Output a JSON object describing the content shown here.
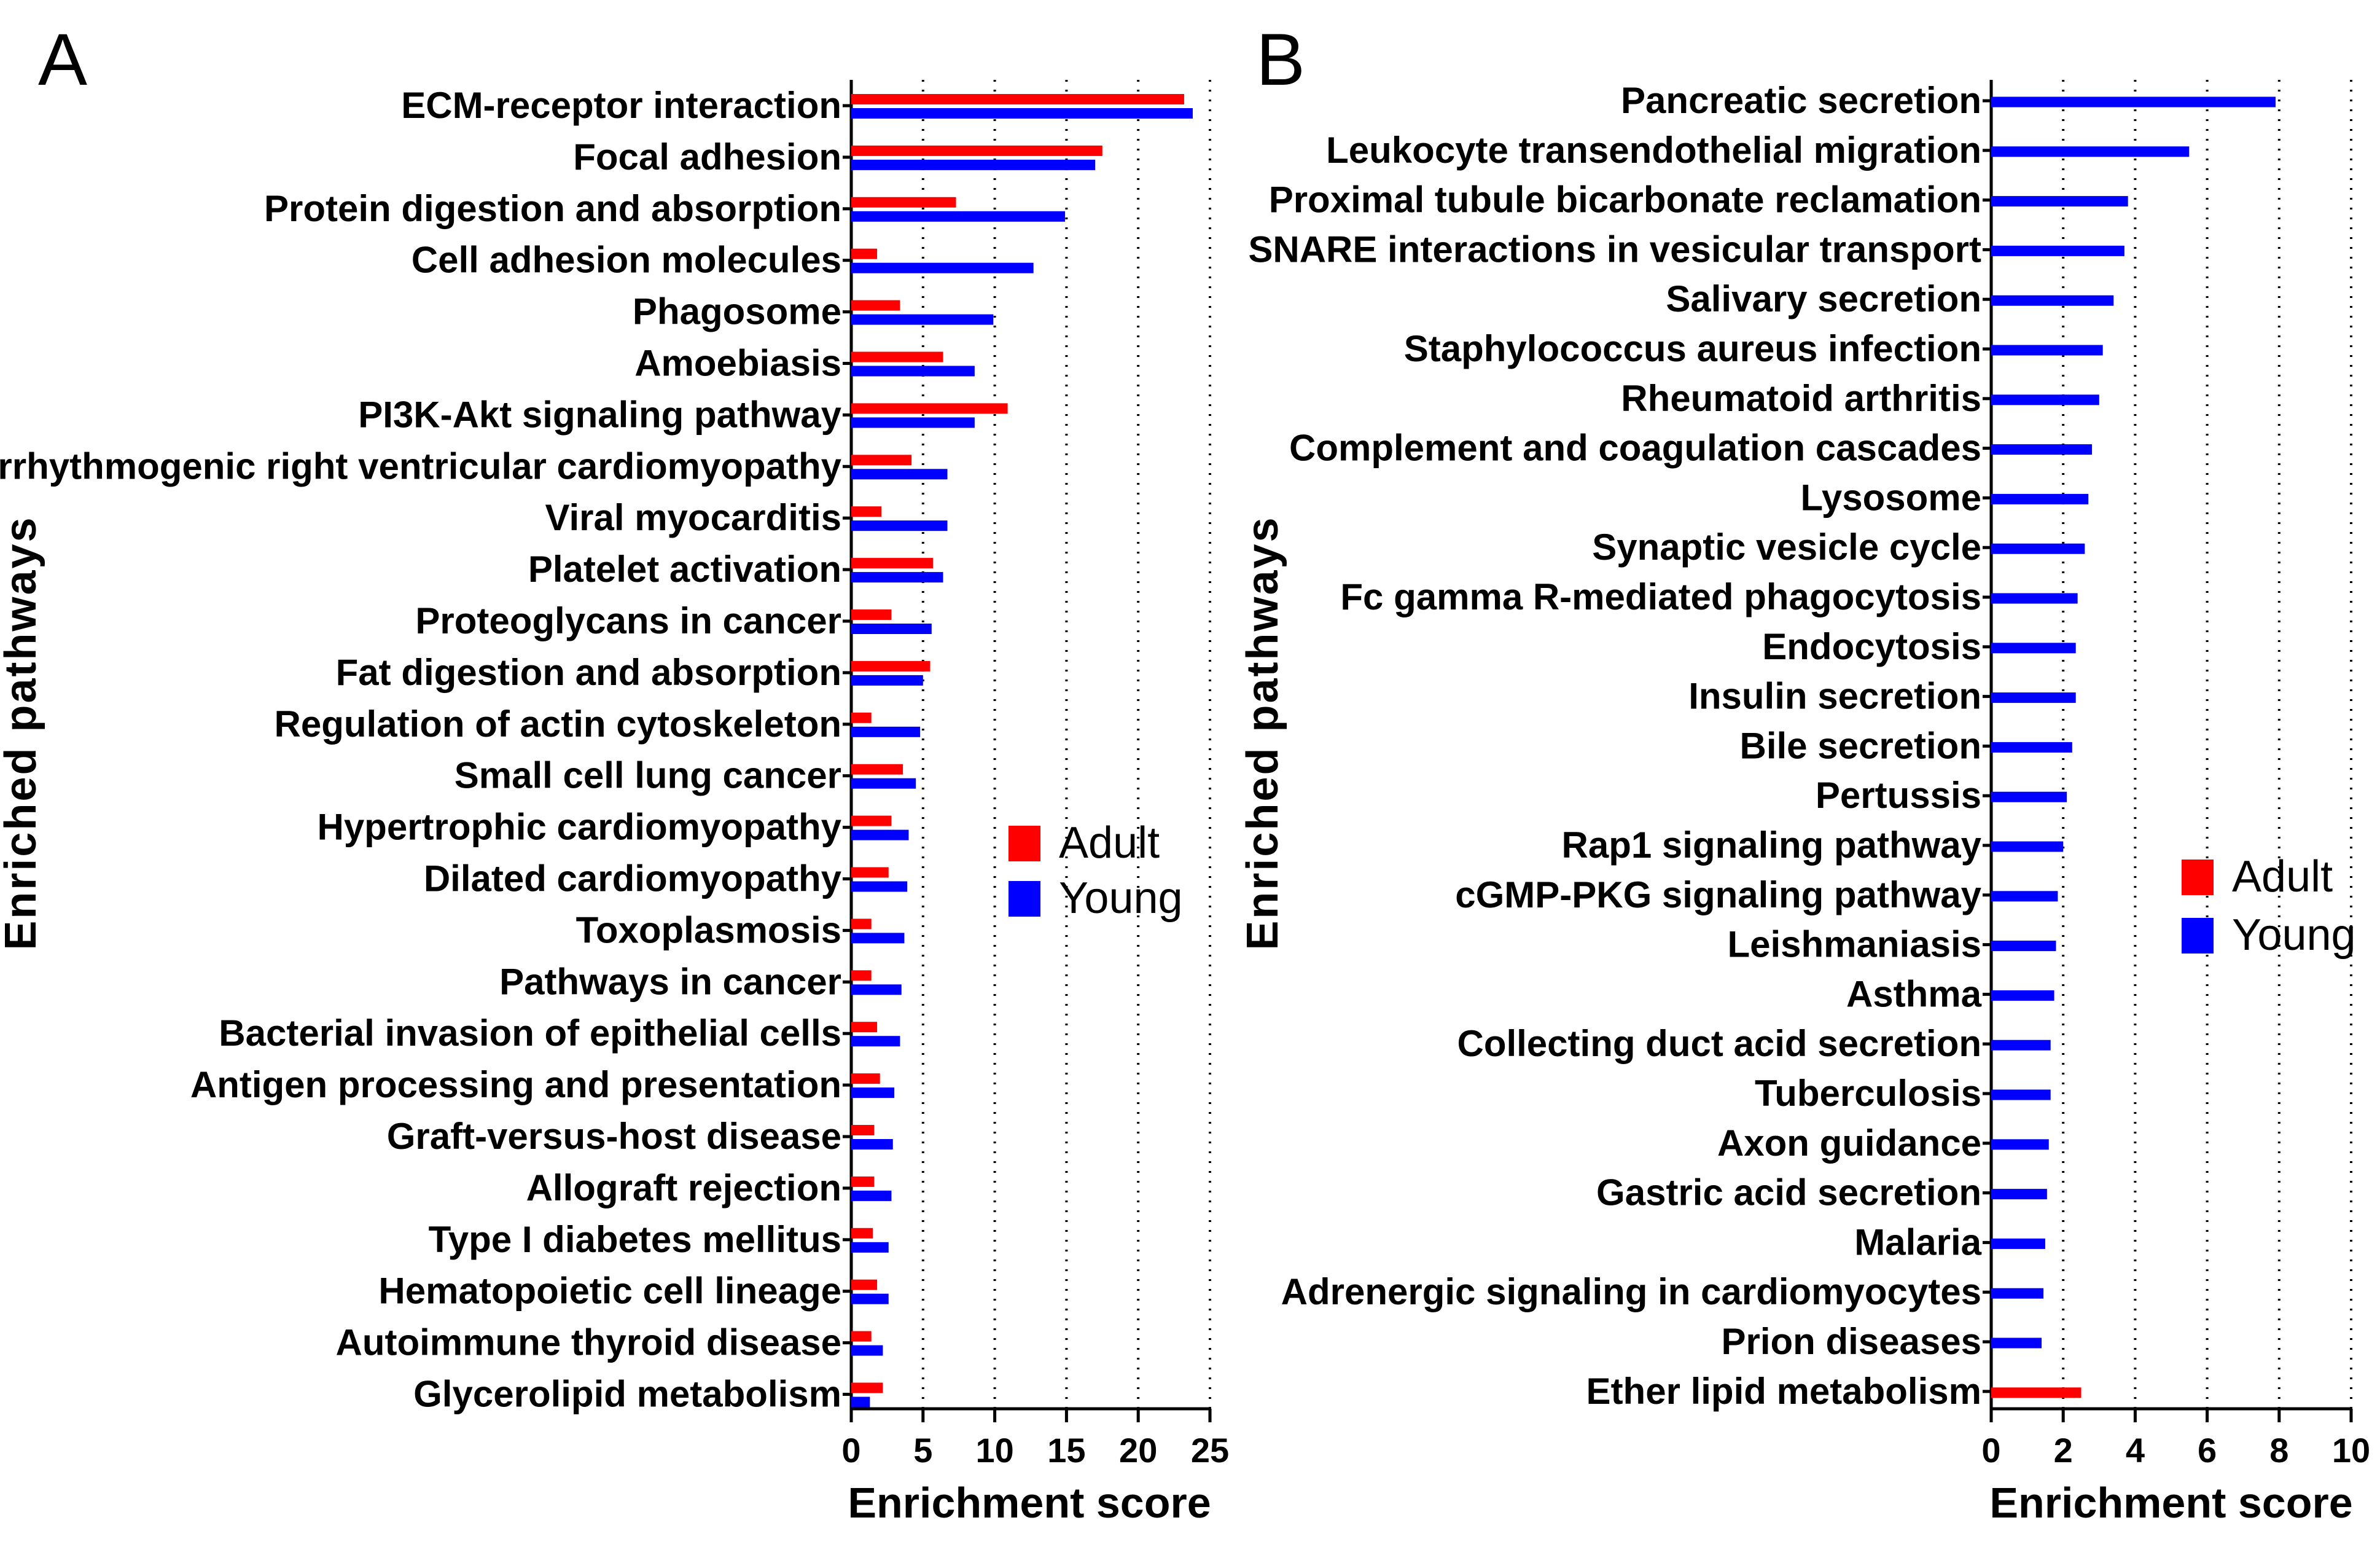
{
  "figure": {
    "colors": {
      "adult": "#ff0000",
      "young": "#0000ff",
      "axis": "#000000",
      "grid": "#000000"
    }
  },
  "chart_data": [
    {
      "type": "bar",
      "orientation": "horizontal",
      "panel_label": "A",
      "xlabel": "Enrichment score",
      "ylabel": "Enriched pathways",
      "xlim": [
        0,
        25
      ],
      "xticks": [
        0,
        5,
        10,
        15,
        20,
        25
      ],
      "grid": "vertical dotted",
      "legend_position": "center-right",
      "categories": [
        "ECM-receptor interaction",
        "Focal adhesion",
        "Protein digestion and absorption",
        "Cell adhesion molecules",
        "Phagosome",
        "Amoebiasis",
        "PI3K-Akt signaling pathway",
        "Arrhythmogenic right ventricular cardiomyopathy",
        "Viral myocarditis",
        "Platelet activation",
        "Proteoglycans in cancer",
        "Fat digestion and absorption",
        "Regulation of actin cytoskeleton",
        "Small cell lung cancer",
        "Hypertrophic cardiomyopathy",
        "Dilated cardiomyopathy",
        "Toxoplasmosis",
        "Pathways in cancer",
        "Bacterial invasion of epithelial cells",
        "Antigen processing and presentation",
        "Graft-versus-host disease",
        "Allograft rejection",
        "Type I diabetes mellitus",
        "Hematopoietic cell lineage",
        "Autoimmune thyroid disease",
        "Glycerolipid metabolism"
      ],
      "series": [
        {
          "name": "Adult",
          "color": "#ff0000",
          "values": [
            23.2,
            17.5,
            7.3,
            1.8,
            3.4,
            6.4,
            10.9,
            4.2,
            2.1,
            5.7,
            2.8,
            5.5,
            1.4,
            3.6,
            2.8,
            2.6,
            1.4,
            1.4,
            1.8,
            2.0,
            1.6,
            1.6,
            1.5,
            1.8,
            1.4,
            2.2
          ]
        },
        {
          "name": "Young",
          "color": "#0000ff",
          "values": [
            23.8,
            17.0,
            14.9,
            12.7,
            9.9,
            8.6,
            8.6,
            6.7,
            6.7,
            6.4,
            5.6,
            5.0,
            4.8,
            4.5,
            4.0,
            3.9,
            3.7,
            3.5,
            3.4,
            3.0,
            2.9,
            2.8,
            2.6,
            2.6,
            2.2,
            1.3
          ]
        }
      ]
    },
    {
      "type": "bar",
      "orientation": "horizontal",
      "panel_label": "B",
      "xlabel": "Enrichment score",
      "ylabel": "Enriched pathways",
      "xlim": [
        0,
        10
      ],
      "xticks": [
        0,
        2,
        4,
        6,
        8,
        10
      ],
      "grid": "vertical dotted",
      "legend_position": "center-right",
      "categories": [
        "Pancreatic secretion",
        "Leukocyte transendothelial migration",
        "Proximal tubule bicarbonate reclamation",
        "SNARE interactions in vesicular transport",
        "Salivary secretion",
        "Staphylococcus aureus infection",
        "Rheumatoid arthritis",
        "Complement and coagulation cascades",
        "Lysosome",
        "Synaptic vesicle cycle",
        "Fc gamma R-mediated phagocytosis",
        "Endocytosis",
        "Insulin secretion",
        "Bile secretion",
        "Pertussis",
        "Rap1 signaling pathway",
        "cGMP-PKG signaling pathway",
        "Leishmaniasis",
        "Asthma",
        "Collecting duct acid secretion",
        "Tuberculosis",
        "Axon guidance",
        "Gastric acid secretion",
        "Malaria",
        "Adrenergic signaling in cardiomyocytes",
        "Prion diseases",
        "Ether lipid metabolism"
      ],
      "series": [
        {
          "name": "Adult",
          "color": "#ff0000",
          "values": [
            null,
            null,
            null,
            null,
            null,
            null,
            null,
            null,
            null,
            null,
            null,
            null,
            null,
            null,
            null,
            null,
            null,
            null,
            null,
            null,
            null,
            null,
            null,
            null,
            null,
            null,
            2.5
          ]
        },
        {
          "name": "Young",
          "color": "#0000ff",
          "values": [
            7.9,
            5.5,
            3.8,
            3.7,
            3.4,
            3.1,
            3.0,
            2.8,
            2.7,
            2.6,
            2.4,
            2.35,
            2.35,
            2.25,
            2.1,
            2.0,
            1.85,
            1.8,
            1.75,
            1.65,
            1.65,
            1.6,
            1.55,
            1.5,
            1.45,
            1.4,
            null
          ]
        }
      ]
    }
  ]
}
